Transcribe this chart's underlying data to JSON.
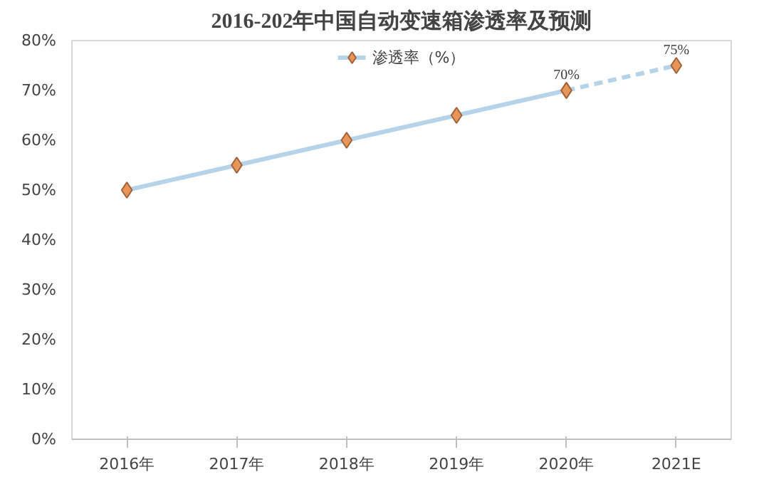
{
  "chart_data": {
    "type": "line",
    "title": "2016-202年中国自动变速箱渗透率及预测",
    "categories": [
      "2016年",
      "2017年",
      "2018年",
      "2019年",
      "2020年",
      "2021E"
    ],
    "series": [
      {
        "name": "渗透率（%）",
        "color": "#b7d3e9",
        "values": [
          50,
          55,
          60,
          65,
          70,
          null
        ],
        "colors": [
          "#e8955a",
          "#e8955a",
          "#e8955a",
          "#e8955a",
          "#e8955a",
          null
        ],
        "line_style": "solid",
        "value_labels": [
          null,
          null,
          null,
          null,
          "70%",
          null
        ]
      },
      {
        "color": "#b7d3e9",
        "values": [
          null,
          null,
          null,
          null,
          70,
          75
        ],
        "colors": [
          null,
          null,
          null,
          null,
          "#e8955a",
          "#e8955a"
        ],
        "line_style": "dashed",
        "value_labels": [
          null,
          null,
          null,
          null,
          null,
          "75%"
        ]
      }
    ],
    "marker": "diamond",
    "ylim": [
      0,
      80
    ],
    "yticks": [
      {
        "value": 0,
        "label": "0%"
      },
      {
        "value": 10,
        "label": "10%"
      },
      {
        "value": 20,
        "label": "20%"
      },
      {
        "value": 30,
        "label": "30%"
      },
      {
        "value": 40,
        "label": "40%"
      },
      {
        "value": 50,
        "label": "50%"
      },
      {
        "value": 60,
        "label": "60%"
      },
      {
        "value": 70,
        "label": "70%"
      },
      {
        "value": 80,
        "label": "80%"
      }
    ],
    "grid": false,
    "legend": "top"
  }
}
